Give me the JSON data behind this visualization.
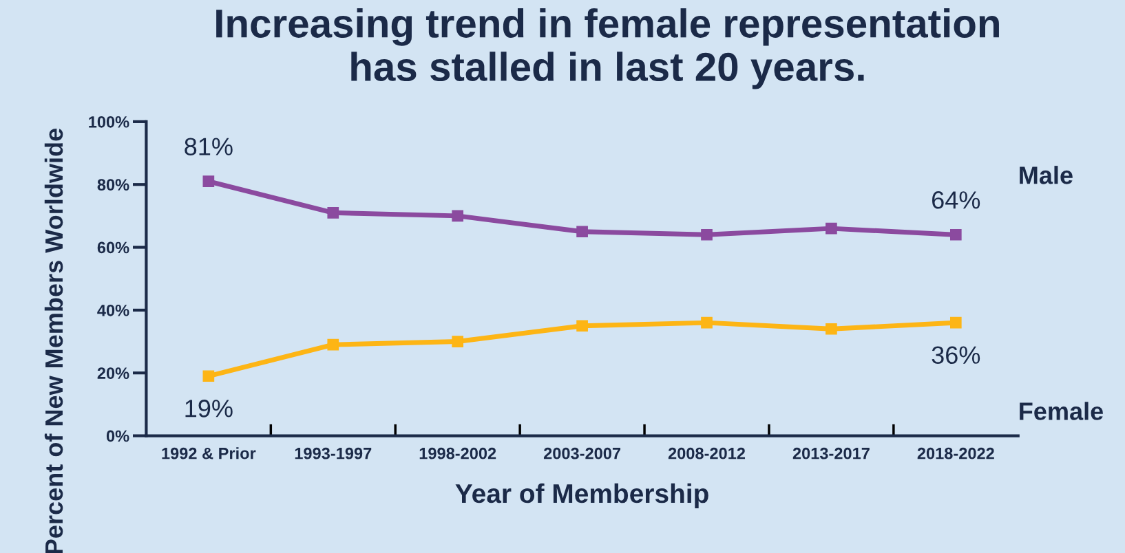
{
  "chart_data": {
    "type": "line",
    "title": "Increasing trend in female representation\nhas stalled in last 20 years.",
    "xlabel": "Year of Membership",
    "ylabel": "Percent of New Members Worldwide",
    "categories": [
      "1992 & Prior",
      "1993-1997",
      "1998-2002",
      "2003-2007",
      "2008-2012",
      "2013-2017",
      "2018-2022"
    ],
    "series": [
      {
        "name": "Male",
        "color": "#8b4a9f",
        "values": [
          81,
          71,
          70,
          65,
          64,
          66,
          64
        ],
        "value_labels": [
          "81%",
          null,
          null,
          null,
          null,
          null,
          "64%"
        ]
      },
      {
        "name": "Female",
        "color": "#fdb515",
        "values": [
          19,
          29,
          30,
          35,
          36,
          34,
          36
        ],
        "value_labels": [
          "19%",
          null,
          null,
          null,
          null,
          null,
          "36%"
        ]
      }
    ],
    "ylim": [
      0,
      100
    ],
    "yticks": [
      {
        "value": 0,
        "label": "0%"
      },
      {
        "value": 20,
        "label": "20%"
      },
      {
        "value": 40,
        "label": "40%"
      },
      {
        "value": 60,
        "label": "60%"
      },
      {
        "value": 80,
        "label": "80%"
      },
      {
        "value": 100,
        "label": "100%"
      }
    ],
    "marker": "square",
    "line_style": "solid",
    "grid": false,
    "legend": false
  }
}
